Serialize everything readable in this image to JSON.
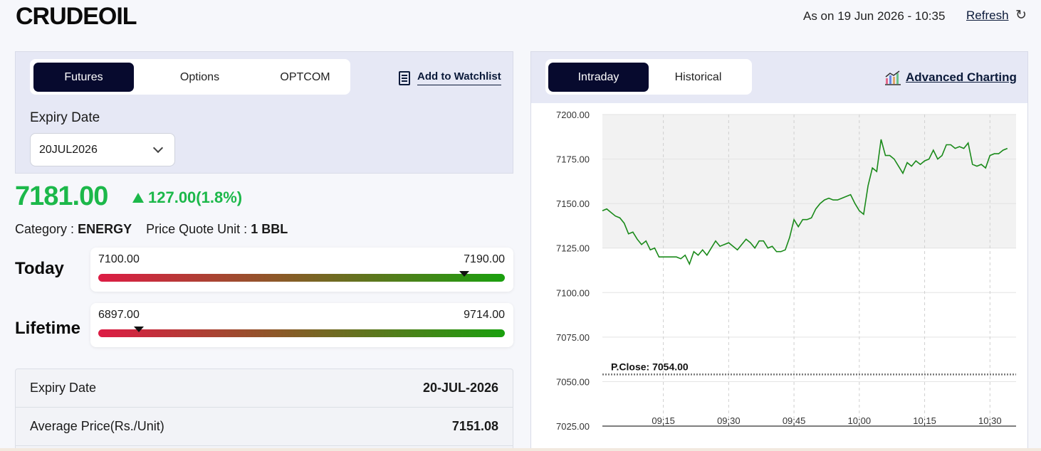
{
  "header": {
    "title": "CRUDEOIL",
    "as_on": "As on 19 Jun 2026 - 10:35",
    "refresh_label": "Refresh"
  },
  "instrument_tabs": [
    "Futures",
    "Options",
    "OPTCOM"
  ],
  "active_instrument_tab": "Futures",
  "watchlist_label": "Add to Watchlist",
  "expiry": {
    "label": "Expiry Date",
    "selected": "20JUL2026"
  },
  "quote": {
    "price": "7181.00",
    "change": "127.00(1.8%)",
    "category_label": "Category :",
    "category_value": "ENERGY",
    "unit_label": "Price Quote Unit :",
    "unit_value": "1 BBL"
  },
  "ranges": {
    "today": {
      "label": "Today",
      "low": "7100.00",
      "high": "7190.00",
      "marker_fraction": 0.9
    },
    "lifetime": {
      "label": "Lifetime",
      "low": "6897.00",
      "high": "9714.00",
      "marker_fraction": 0.1
    }
  },
  "details": [
    {
      "label": "Expiry Date",
      "value": "20-JUL-2026"
    },
    {
      "label": "Average Price(Rs./Unit)",
      "value": "7151.08"
    }
  ],
  "chart_tabs": [
    "Intraday",
    "Historical"
  ],
  "active_chart_tab": "Intraday",
  "advanced_charting_label": "Advanced Charting",
  "colors": {
    "up": "#1cb84a",
    "accent_dark": "#070a2e",
    "line": "#1a8a1a"
  },
  "chart_data": {
    "type": "line",
    "y_ticks": [
      "7200.00",
      "7175.00",
      "7150.00",
      "7125.00",
      "7100.00",
      "7075.00",
      "7050.00",
      "7025.00"
    ],
    "x_ticks": [
      "09:15",
      "09:30",
      "09:45",
      "10:00",
      "10:15",
      "10:30"
    ],
    "ylim": [
      7025,
      7200
    ],
    "xlim_minutes_from_0901": [
      0,
      95
    ],
    "prev_close": {
      "label": "P.Close: 7054.00",
      "value": 7054
    },
    "series": [
      {
        "points": [
          [
            0,
            7146
          ],
          [
            1,
            7147
          ],
          [
            2,
            7145
          ],
          [
            3,
            7143
          ],
          [
            4,
            7142
          ],
          [
            5,
            7139
          ],
          [
            6,
            7133
          ],
          [
            7,
            7134
          ],
          [
            8,
            7130
          ],
          [
            9,
            7127
          ],
          [
            10,
            7129
          ],
          [
            11,
            7124
          ],
          [
            12,
            7125
          ],
          [
            13,
            7120
          ],
          [
            14,
            7120
          ],
          [
            15,
            7120
          ],
          [
            16,
            7120
          ],
          [
            17,
            7120
          ],
          [
            18,
            7119
          ],
          [
            19,
            7121
          ],
          [
            20,
            7116
          ],
          [
            21,
            7123
          ],
          [
            22,
            7121
          ],
          [
            23,
            7124
          ],
          [
            24,
            7121
          ],
          [
            25,
            7125
          ],
          [
            26,
            7129
          ],
          [
            27,
            7126
          ],
          [
            28,
            7127
          ],
          [
            29,
            7128
          ],
          [
            30,
            7126
          ],
          [
            31,
            7124
          ],
          [
            32,
            7127
          ],
          [
            33,
            7130
          ],
          [
            34,
            7128
          ],
          [
            35,
            7125
          ],
          [
            36,
            7129
          ],
          [
            37,
            7129
          ],
          [
            38,
            7125
          ],
          [
            39,
            7126
          ],
          [
            40,
            7123
          ],
          [
            41,
            7123
          ],
          [
            42,
            7124
          ],
          [
            43,
            7131
          ],
          [
            44,
            7141
          ],
          [
            45,
            7137
          ],
          [
            46,
            7141
          ],
          [
            47,
            7141
          ],
          [
            48,
            7142
          ],
          [
            49,
            7147
          ],
          [
            50,
            7150
          ],
          [
            51,
            7152
          ],
          [
            52,
            7153
          ],
          [
            53,
            7152
          ],
          [
            54,
            7152
          ],
          [
            55,
            7153
          ],
          [
            56,
            7154
          ],
          [
            57,
            7155
          ],
          [
            58,
            7150
          ],
          [
            59,
            7146
          ],
          [
            60,
            7144
          ],
          [
            61,
            7160
          ],
          [
            62,
            7170
          ],
          [
            63,
            7168
          ],
          [
            64,
            7186
          ],
          [
            65,
            7177
          ],
          [
            66,
            7177
          ],
          [
            67,
            7175
          ],
          [
            68,
            7171
          ],
          [
            69,
            7167
          ],
          [
            70,
            7173
          ],
          [
            71,
            7171
          ],
          [
            72,
            7174
          ],
          [
            73,
            7172
          ],
          [
            74,
            7174
          ],
          [
            75,
            7175
          ],
          [
            76,
            7180
          ],
          [
            77,
            7175
          ],
          [
            78,
            7177
          ],
          [
            79,
            7183
          ],
          [
            80,
            7183
          ],
          [
            81,
            7181
          ],
          [
            82,
            7182
          ],
          [
            83,
            7181
          ],
          [
            84,
            7184
          ],
          [
            85,
            7172
          ],
          [
            86,
            7171
          ],
          [
            87,
            7172
          ],
          [
            88,
            7170
          ],
          [
            89,
            7177
          ],
          [
            90,
            7178
          ],
          [
            91,
            7178
          ],
          [
            92,
            7180
          ],
          [
            93,
            7181
          ]
        ]
      }
    ]
  }
}
